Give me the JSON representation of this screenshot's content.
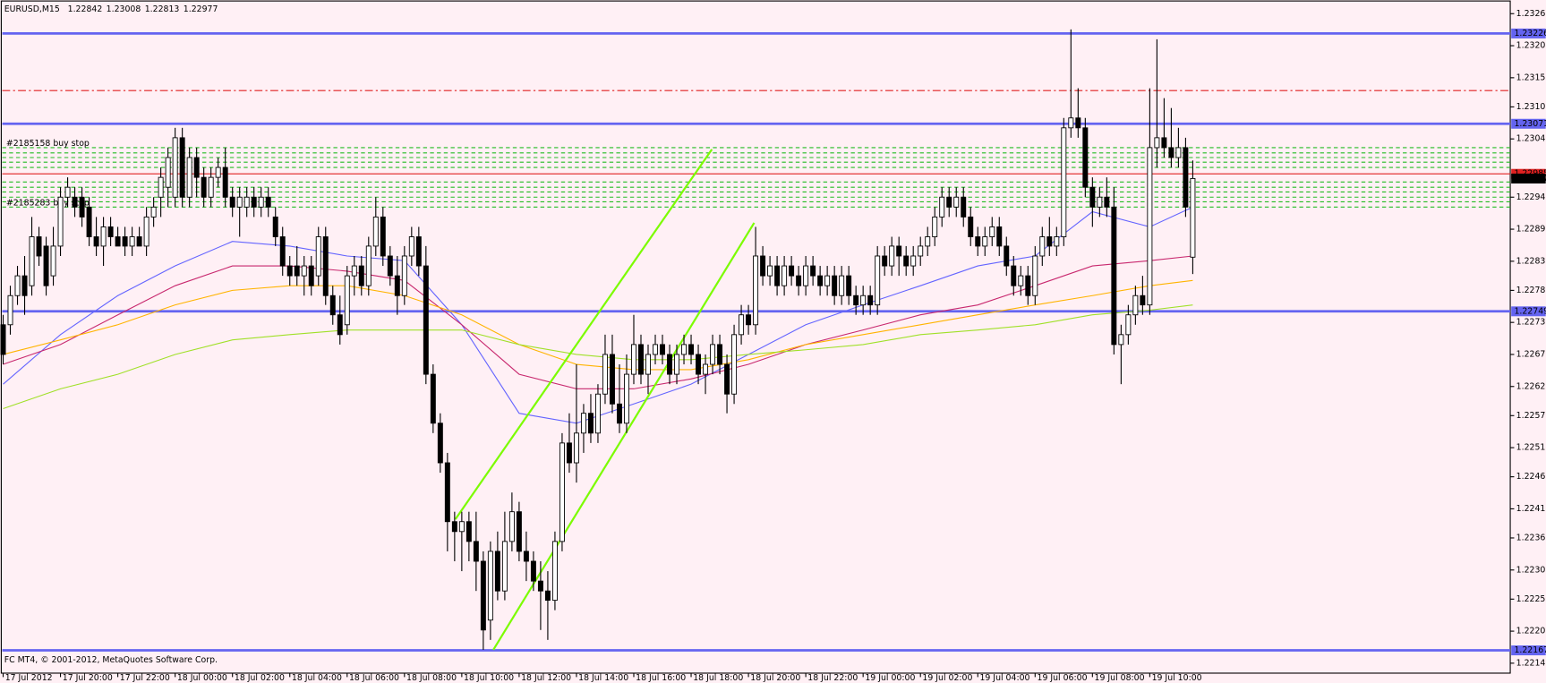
{
  "chart_data": {
    "type": "candlestick",
    "title": "EURUSD,M15",
    "footer": "FC MT4, © 2001-2012, MetaQuotes Software Corp.",
    "background": "#fff0f5",
    "open": [
      1.22726,
      1.22726,
      1.22776,
      1.2281,
      1.22793,
      1.22877,
      1.22861,
      1.2281,
      1.22861,
      1.22945,
      1.22945,
      1.22945,
      1.22928,
      1.22877,
      1.22861,
      1.22894,
      1.22877,
      1.22877,
      1.22861,
      1.22877,
      1.22861,
      1.22911,
      1.22945,
      1.22962,
      1.22945,
      1.23047,
      1.22945,
      1.23013,
      1.22979,
      1.22945,
      1.22979,
      1.22996,
      1.22945,
      1.22928,
      1.22928,
      1.22945,
      1.22928,
      1.22945,
      1.22911,
      1.22877,
      1.22827,
      1.22827,
      1.2281,
      1.22827,
      1.2281,
      1.22877,
      1.22776,
      1.22743,
      1.22726,
      1.2281,
      1.22827,
      1.22793,
      1.22861,
      1.22911,
      1.22844,
      1.2281,
      1.22776,
      1.22844,
      1.22877,
      1.22827,
      1.22641,
      1.22557,
      1.22489,
      1.22388,
      1.22371,
      1.22388,
      1.22354,
      1.2232,
      1.22219,
      1.22337,
      1.22269,
      1.22354,
      1.22405,
      1.22337,
      1.2232,
      1.22286,
      1.22269,
      1.22253,
      1.22354,
      1.22523,
      1.22489,
      1.2254,
      1.22574,
      1.2254,
      1.22607,
      1.22675,
      1.2259,
      1.22557,
      1.22641,
      1.22692,
      1.22641,
      1.22675,
      1.22692,
      1.22675,
      1.22641,
      1.22675,
      1.22692,
      1.22675,
      1.22641,
      1.22658,
      1.22692,
      1.22658,
      1.22607,
      1.22709,
      1.22743,
      1.22726,
      1.22844,
      1.2281,
      1.22827,
      1.22793,
      1.22827,
      1.2281,
      1.22793,
      1.22827,
      1.2281,
      1.22793,
      1.2281,
      1.22776,
      1.2281,
      1.22776,
      1.2276,
      1.22776,
      1.2276,
      1.22844,
      1.22827,
      1.22861,
      1.22844,
      1.22827,
      1.22844,
      1.22861,
      1.22877,
      1.22911,
      1.22945,
      1.22928,
      1.22945,
      1.22911,
      1.22877,
      1.22861,
      1.22877,
      1.22894,
      1.22861,
      1.22827,
      1.22793,
      1.2281,
      1.22776,
      1.22844,
      1.22877,
      1.22861,
      1.22877,
      1.23064,
      1.23081,
      1.23064,
      1.22962,
      1.22928,
      1.22945,
      1.22928,
      1.22692,
      1.22709,
      1.22743,
      1.22776,
      1.2276,
      1.2303,
      1.23047,
      1.2303,
      1.23013,
      1.2303,
      1.22842
    ],
    "high": [
      1.22743,
      1.22793,
      1.22827,
      1.22844,
      1.22911,
      1.22894,
      1.22877,
      1.22894,
      1.22962,
      1.22979,
      1.22962,
      1.22962,
      1.22945,
      1.22911,
      1.22911,
      1.22911,
      1.22894,
      1.22894,
      1.22894,
      1.22894,
      1.22928,
      1.22945,
      1.22996,
      1.2303,
      1.23064,
      1.23064,
      1.2303,
      1.2303,
      1.22996,
      1.22996,
      1.23013,
      1.2303,
      1.22962,
      1.22962,
      1.22962,
      1.22962,
      1.22962,
      1.22962,
      1.22928,
      1.22894,
      1.22844,
      1.22861,
      1.22844,
      1.22844,
      1.22894,
      1.22894,
      1.22793,
      1.22776,
      1.22827,
      1.22844,
      1.22844,
      1.22877,
      1.22945,
      1.22928,
      1.22861,
      1.22844,
      1.22861,
      1.22894,
      1.22894,
      1.22861,
      1.22658,
      1.22574,
      1.22506,
      1.22405,
      1.22405,
      1.22405,
      1.22405,
      1.22337,
      1.22354,
      1.22371,
      1.22405,
      1.22438,
      1.22422,
      1.22371,
      1.22337,
      1.2232,
      1.22303,
      1.22371,
      1.2254,
      1.22574,
      1.22658,
      1.2259,
      1.22607,
      1.22624,
      1.22709,
      1.22709,
      1.22658,
      1.22675,
      1.22743,
      1.22709,
      1.22692,
      1.22709,
      1.22709,
      1.22692,
      1.22692,
      1.22709,
      1.22709,
      1.22692,
      1.22675,
      1.22709,
      1.22709,
      1.22675,
      1.22726,
      1.2276,
      1.2276,
      1.22894,
      1.22861,
      1.22844,
      1.22844,
      1.22844,
      1.22844,
      1.22827,
      1.22844,
      1.22844,
      1.22827,
      1.22827,
      1.22827,
      1.22827,
      1.22827,
      1.22793,
      1.22793,
      1.22793,
      1.22861,
      1.22861,
      1.22877,
      1.22877,
      1.22861,
      1.22861,
      1.22877,
      1.22894,
      1.22928,
      1.22962,
      1.22962,
      1.22962,
      1.22962,
      1.22928,
      1.22894,
      1.22894,
      1.22911,
      1.22911,
      1.22877,
      1.22844,
      1.22827,
      1.22827,
      1.22861,
      1.22894,
      1.22911,
      1.22894,
      1.23081,
      1.23233,
      1.23132,
      1.23081,
      1.22979,
      1.22962,
      1.22979,
      1.22962,
      1.22726,
      1.2276,
      1.22793,
      1.2281,
      1.23132,
      1.23216,
      1.23115,
      1.23098,
      1.23064,
      1.23047,
      1.23008
    ],
    "low": [
      1.22658,
      1.22709,
      1.2276,
      1.22743,
      1.22776,
      1.22827,
      1.22776,
      1.22793,
      1.22844,
      1.22928,
      1.22911,
      1.22894,
      1.22861,
      1.22844,
      1.22827,
      1.22861,
      1.22861,
      1.22844,
      1.22844,
      1.22861,
      1.22844,
      1.22894,
      1.22911,
      1.22928,
      1.22928,
      1.22928,
      1.22928,
      1.22945,
      1.22928,
      1.22928,
      1.22962,
      1.22928,
      1.22911,
      1.22877,
      1.22911,
      1.22911,
      1.22911,
      1.22911,
      1.22861,
      1.2281,
      1.22793,
      1.22793,
      1.22776,
      1.22776,
      1.22793,
      1.2276,
      1.22726,
      1.22692,
      1.22709,
      1.22776,
      1.22776,
      1.22776,
      1.22844,
      1.22827,
      1.22793,
      1.22743,
      1.2276,
      1.22827,
      1.2281,
      1.22624,
      1.2254,
      1.22472,
      1.22337,
      1.2232,
      1.22303,
      1.2232,
      1.22269,
      1.22168,
      1.22185,
      1.22253,
      1.22253,
      1.22337,
      1.2232,
      1.22286,
      1.22269,
      1.22202,
      1.22185,
      1.22236,
      1.22337,
      1.22472,
      1.22455,
      1.22506,
      1.22523,
      1.22523,
      1.2259,
      1.22574,
      1.2254,
      1.2254,
      1.22624,
      1.22624,
      1.22607,
      1.22658,
      1.22658,
      1.22624,
      1.22624,
      1.22658,
      1.22658,
      1.22624,
      1.22607,
      1.22641,
      1.22641,
      1.22574,
      1.2259,
      1.22692,
      1.22709,
      1.22709,
      1.22793,
      1.22793,
      1.22776,
      1.22776,
      1.22793,
      1.22776,
      1.22776,
      1.22793,
      1.22776,
      1.22776,
      1.2276,
      1.2276,
      1.2276,
      1.22743,
      1.22743,
      1.22743,
      1.22743,
      1.2281,
      1.2281,
      1.2281,
      1.2281,
      1.2281,
      1.22827,
      1.22844,
      1.22861,
      1.22894,
      1.22911,
      1.22911,
      1.22894,
      1.22861,
      1.22844,
      1.22844,
      1.22861,
      1.22844,
      1.2281,
      1.22776,
      1.22776,
      1.2276,
      1.2276,
      1.22827,
      1.22844,
      1.22844,
      1.22861,
      1.23047,
      1.23047,
      1.22945,
      1.22894,
      1.22911,
      1.22911,
      1.22675,
      1.22624,
      1.22692,
      1.22726,
      1.22743,
      1.22743,
      1.22996,
      1.23013,
      1.22996,
      1.22996,
      1.22911,
      1.22813
    ],
    "close": [
      1.22675,
      1.22776,
      1.2281,
      1.22776,
      1.22877,
      1.22844,
      1.22793,
      1.22861,
      1.22945,
      1.22962,
      1.22928,
      1.22911,
      1.22877,
      1.22861,
      1.22894,
      1.22877,
      1.22861,
      1.22861,
      1.22877,
      1.22861,
      1.22911,
      1.22928,
      1.22979,
      1.23013,
      1.23047,
      1.22945,
      1.23013,
      1.22979,
      1.22945,
      1.22979,
      1.22996,
      1.22945,
      1.22928,
      1.22945,
      1.22945,
      1.22928,
      1.22945,
      1.22928,
      1.22877,
      1.22827,
      1.2281,
      1.2281,
      1.22827,
      1.22793,
      1.22877,
      1.22776,
      1.22743,
      1.22709,
      1.2281,
      1.22827,
      1.22793,
      1.22861,
      1.22911,
      1.22844,
      1.2281,
      1.22776,
      1.22844,
      1.22877,
      1.22827,
      1.22641,
      1.22557,
      1.22489,
      1.22388,
      1.22371,
      1.22388,
      1.22354,
      1.2232,
      1.22202,
      1.22337,
      1.22269,
      1.22354,
      1.22405,
      1.22337,
      1.2232,
      1.22286,
      1.22269,
      1.22253,
      1.22354,
      1.22523,
      1.22489,
      1.2254,
      1.22574,
      1.2254,
      1.22607,
      1.22675,
      1.2259,
      1.22557,
      1.22641,
      1.22692,
      1.22641,
      1.22675,
      1.22692,
      1.22675,
      1.22641,
      1.22675,
      1.22692,
      1.22675,
      1.22641,
      1.22658,
      1.22692,
      1.22658,
      1.22607,
      1.22709,
      1.22743,
      1.22726,
      1.22844,
      1.2281,
      1.22827,
      1.22793,
      1.22827,
      1.2281,
      1.22793,
      1.22827,
      1.2281,
      1.22793,
      1.2281,
      1.22776,
      1.2281,
      1.22776,
      1.2276,
      1.22776,
      1.2276,
      1.22844,
      1.22827,
      1.22861,
      1.22844,
      1.22827,
      1.22844,
      1.22861,
      1.22877,
      1.22911,
      1.22945,
      1.22928,
      1.22945,
      1.22911,
      1.22877,
      1.22861,
      1.22877,
      1.22894,
      1.22861,
      1.22827,
      1.22793,
      1.2281,
      1.22776,
      1.22844,
      1.22877,
      1.22861,
      1.22877,
      1.23064,
      1.23081,
      1.23064,
      1.22962,
      1.22928,
      1.22945,
      1.22928,
      1.22692,
      1.22709,
      1.22743,
      1.22776,
      1.2276,
      1.2303,
      1.23047,
      1.2303,
      1.23013,
      1.2303,
      1.22928,
      1.22977
    ],
    "xlim": [
      -0.4,
      210.3
    ],
    "xticks": [
      {
        "value": 0,
        "label": "17 Jul 2012"
      },
      {
        "value": 8,
        "label": "17 Jul 20:00"
      },
      {
        "value": 16,
        "label": "17 Jul 22:00"
      },
      {
        "value": 24,
        "label": "18 Jul 00:00"
      },
      {
        "value": 32,
        "label": "18 Jul 02:00"
      },
      {
        "value": 40,
        "label": "18 Jul 04:00"
      },
      {
        "value": 48,
        "label": "18 Jul 06:00"
      },
      {
        "value": 56,
        "label": "18 Jul 08:00"
      },
      {
        "value": 64,
        "label": "18 Jul 10:00"
      },
      {
        "value": 72,
        "label": "18 Jul 12:00"
      },
      {
        "value": 80,
        "label": "18 Jul 14:00"
      },
      {
        "value": 88,
        "label": "18 Jul 16:00"
      },
      {
        "value": 96,
        "label": "18 Jul 18:00"
      },
      {
        "value": 104,
        "label": "18 Jul 20:00"
      },
      {
        "value": 112,
        "label": "18 Jul 22:00"
      },
      {
        "value": 120,
        "label": "19 Jul 00:00"
      },
      {
        "value": 128,
        "label": "19 Jul 02:00"
      },
      {
        "value": 136,
        "label": "19 Jul 04:00"
      },
      {
        "value": 144,
        "label": "19 Jul 06:00"
      },
      {
        "value": 152,
        "label": "19 Jul 08:00"
      },
      {
        "value": 160,
        "label": "19 Jul 10:00"
      }
    ],
    "ylim": [
      1.22133,
      1.23275
    ],
    "yticks": [
      {
        "value": 1.2326,
        "label": "1.23260"
      },
      1.23205,
      {
        "value": 1.2315,
        "label": "1.23150"
      },
      {
        "value": 1.231,
        "label": "1.23100"
      },
      1.23045,
      1.22945,
      {
        "value": 1.2289,
        "label": "1.22890"
      },
      1.22835,
      1.22785,
      {
        "value": 1.2273,
        "label": "1.22730"
      },
      1.22675,
      {
        "value": 1.2262,
        "label": "1.22620"
      },
      {
        "value": 1.2257,
        "label": "1.22570"
      },
      1.22515,
      1.22465,
      {
        "value": 1.2241,
        "label": "1.22410"
      },
      {
        "value": 1.2236,
        "label": "1.22360"
      },
      1.22305,
      1.22255,
      {
        "value": 1.222,
        "label": "1.22200"
      },
      1.22145
    ],
    "mas": [
      {
        "color": "#6464ff",
        "x": [
          0,
          8,
          16,
          24,
          32,
          40,
          48,
          56,
          64,
          72,
          80,
          88,
          96,
          104,
          112,
          120,
          128,
          136,
          144,
          152,
          160,
          166
        ],
        "values": [
          1.22624,
          1.22709,
          1.22776,
          1.22827,
          1.22869,
          1.22861,
          1.22844,
          1.22836,
          1.22726,
          1.22574,
          1.22557,
          1.2259,
          1.22624,
          1.22675,
          1.22726,
          1.2276,
          1.22793,
          1.22827,
          1.22844,
          1.2292,
          1.22894,
          1.22928
        ]
      },
      {
        "color": "#c8286e",
        "x": [
          0,
          8,
          16,
          24,
          32,
          40,
          48,
          56,
          64,
          72,
          80,
          88,
          96,
          104,
          112,
          120,
          128,
          136,
          144,
          152,
          160,
          166
        ],
        "values": [
          1.22658,
          1.22692,
          1.22743,
          1.22793,
          1.22827,
          1.22827,
          1.22818,
          1.22802,
          1.22726,
          1.22641,
          1.22616,
          1.22616,
          1.22633,
          1.22658,
          1.22692,
          1.22717,
          1.22743,
          1.2276,
          1.22793,
          1.22827,
          1.22836,
          1.22844
        ]
      },
      {
        "color": "#ffb400",
        "x": [
          0,
          8,
          16,
          24,
          32,
          40,
          48,
          56,
          64,
          72,
          80,
          88,
          96,
          104,
          112,
          120,
          128,
          136,
          144,
          152,
          160,
          166
        ],
        "values": [
          1.22675,
          1.227,
          1.22726,
          1.2276,
          1.22785,
          1.22793,
          1.22793,
          1.22776,
          1.22743,
          1.22692,
          1.22658,
          1.22649,
          1.22649,
          1.22666,
          1.22692,
          1.22709,
          1.22726,
          1.22743,
          1.2276,
          1.22776,
          1.22793,
          1.22802
        ]
      },
      {
        "color": "#a0e028",
        "x": [
          0,
          8,
          16,
          24,
          32,
          40,
          48,
          56,
          64,
          72,
          80,
          88,
          96,
          104,
          112,
          120,
          128,
          136,
          144,
          152,
          160,
          166
        ],
        "values": [
          1.22582,
          1.22616,
          1.22641,
          1.22675,
          1.227,
          1.22709,
          1.22717,
          1.22717,
          1.22717,
          1.22692,
          1.22675,
          1.22666,
          1.22666,
          1.22675,
          1.22683,
          1.22692,
          1.22709,
          1.22717,
          1.22726,
          1.22743,
          1.22751,
          1.2276
        ]
      }
    ],
    "levels": [
      {
        "value": 1.23226
      },
      {
        "value": 1.23071
      },
      {
        "value": 1.22749
      },
      {
        "value": 1.22167
      }
    ],
    "level_color": "#6464f0",
    "orders": [
      {
        "value": 1.2303,
        "label": "#2185158 buy stop"
      },
      {
        "value": 1.23021
      },
      {
        "value": 1.23013
      },
      {
        "value": 1.23005
      },
      {
        "value": 1.22996
      },
      {
        "value": 1.22971
      },
      {
        "value": 1.22962
      },
      {
        "value": 1.22954
      },
      {
        "value": 1.22945
      },
      {
        "value": 1.22937
      },
      {
        "value": 1.22928,
        "label": "#2185283 buy stop"
      }
    ],
    "order_color": "#22bb22",
    "stop_line": {
      "value": 1.23128,
      "color": "#e02020"
    },
    "ask_line": {
      "value": 1.22985,
      "color": "#e02020"
    },
    "trendlines": [
      {
        "x": [
          63.1,
          98.9
        ],
        "values": [
          1.22392,
          1.23027
        ]
      },
      {
        "x": [
          68.4,
          104.8
        ],
        "values": [
          1.22168,
          1.22901
        ]
      }
    ],
    "trendline_color": "#7cfc00"
  }
}
